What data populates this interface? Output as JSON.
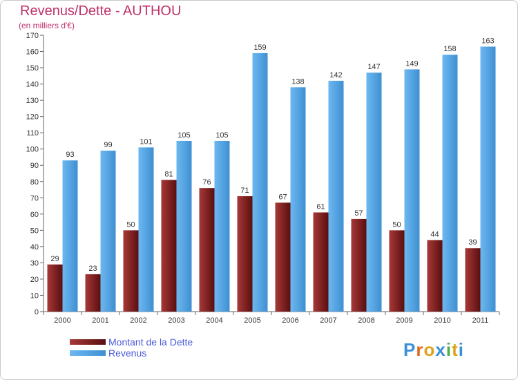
{
  "header": {
    "title": "Revenus/Dette - AUTHOU",
    "subtitle": "(en milliers d'€)"
  },
  "colors": {
    "title": "#c0306a",
    "debt": "#7a1c1c",
    "revenue": "#4aa0e0",
    "legend_text": "#4a5ad8"
  },
  "legend": {
    "debt_label": "Montant de la Dette",
    "revenue_label": "Revenus"
  },
  "logo": {
    "text": "Proxiti"
  },
  "chart_data": {
    "type": "bar",
    "title": "Revenus/Dette - AUTHOU",
    "subtitle": "(en milliers d'€)",
    "categories": [
      "2000",
      "2001",
      "2002",
      "2003",
      "2004",
      "2005",
      "2006",
      "2007",
      "2008",
      "2009",
      "2010",
      "2011"
    ],
    "series": [
      {
        "name": "Montant de la Dette",
        "values": [
          29,
          23,
          50,
          81,
          76,
          71,
          67,
          61,
          57,
          50,
          44,
          39
        ]
      },
      {
        "name": "Revenus",
        "values": [
          93,
          99,
          101,
          105,
          105,
          159,
          138,
          142,
          147,
          149,
          158,
          163
        ]
      }
    ],
    "ylim": [
      0,
      170
    ],
    "ytick_step": 10,
    "grid": false,
    "legend_position": "bottom-left"
  }
}
